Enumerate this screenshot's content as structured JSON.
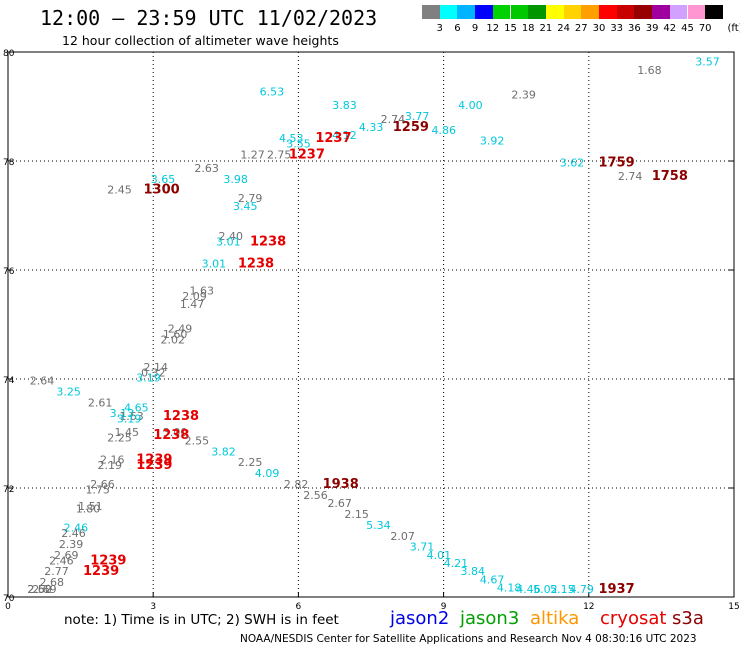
{
  "header": {
    "title": "12:00 – 23:59 UTC 11/02/2023",
    "subtitle": "12 hour collection of altimeter wave heights"
  },
  "colorbar": {
    "unit": "(ft)",
    "labels": [
      "3",
      "6",
      "9",
      "12",
      "15",
      "18",
      "21",
      "24",
      "27",
      "30",
      "33",
      "36",
      "39",
      "42",
      "45",
      "70"
    ],
    "colors": [
      "#808080",
      "#00ffff",
      "#00b4ff",
      "#0000ff",
      "#00d200",
      "#00c800",
      "#009600",
      "#ffff00",
      "#ffd200",
      "#ffa000",
      "#ff0000",
      "#c80000",
      "#960000",
      "#a000a0",
      "#d2a0ff",
      "#ff96d2",
      "#000000"
    ]
  },
  "chart_data": {
    "type": "scatter",
    "title": "12:00 – 23:59 UTC 11/02/2023",
    "subtitle": "12 hour collection of altimeter wave heights",
    "xlim": [
      0,
      15
    ],
    "ylim": [
      70,
      80
    ],
    "x_ticks": [
      "0",
      "3",
      "6",
      "9",
      "12",
      "15"
    ],
    "y_ticks": [
      "70",
      "72",
      "74",
      "76",
      "78",
      "80"
    ],
    "grid": true,
    "colors": {
      "gray": "#6e6e6e",
      "cyan": "#00c8dc",
      "red": "#e60000",
      "darkred": "#8c0000"
    },
    "labels": [
      {
        "t": "6.53",
        "x": 5.2,
        "y": 79.2,
        "c": "cyan"
      },
      {
        "t": "1.68",
        "x": 13.0,
        "y": 79.6,
        "c": "gray"
      },
      {
        "t": "3.57",
        "x": 14.2,
        "y": 79.75,
        "c": "cyan"
      },
      {
        "t": "2.39",
        "x": 10.4,
        "y": 79.15,
        "c": "gray"
      },
      {
        "t": "4.00",
        "x": 9.3,
        "y": 78.95,
        "c": "cyan"
      },
      {
        "t": "3.83",
        "x": 6.7,
        "y": 78.95,
        "c": "cyan"
      },
      {
        "t": "2.74",
        "x": 7.7,
        "y": 78.7,
        "c": "gray"
      },
      {
        "t": "3.77",
        "x": 8.2,
        "y": 78.75,
        "c": "cyan"
      },
      {
        "t": "4.33",
        "x": 7.25,
        "y": 78.55,
        "c": "cyan"
      },
      {
        "t": "1259",
        "x": 7.95,
        "y": 78.55,
        "c": "darkred"
      },
      {
        "t": "4.86",
        "x": 8.75,
        "y": 78.5,
        "c": "cyan"
      },
      {
        "t": "4.12",
        "x": 6.7,
        "y": 78.4,
        "c": "cyan"
      },
      {
        "t": "1237",
        "x": 6.35,
        "y": 78.35,
        "c": "red"
      },
      {
        "t": "4.53",
        "x": 5.6,
        "y": 78.35,
        "c": "cyan"
      },
      {
        "t": "3.55",
        "x": 5.75,
        "y": 78.25,
        "c": "cyan"
      },
      {
        "t": "3.92",
        "x": 9.75,
        "y": 78.3,
        "c": "cyan"
      },
      {
        "t": "1.27",
        "x": 4.8,
        "y": 78.05,
        "c": "gray"
      },
      {
        "t": "2.75",
        "x": 5.35,
        "y": 78.05,
        "c": "gray"
      },
      {
        "t": "1237",
        "x": 5.8,
        "y": 78.05,
        "c": "red"
      },
      {
        "t": "3.62",
        "x": 11.4,
        "y": 77.9,
        "c": "cyan"
      },
      {
        "t": "1759",
        "x": 12.2,
        "y": 77.9,
        "c": "darkred"
      },
      {
        "t": "2.74",
        "x": 12.6,
        "y": 77.65,
        "c": "gray"
      },
      {
        "t": "1758",
        "x": 13.3,
        "y": 77.65,
        "c": "darkred"
      },
      {
        "t": "2.63",
        "x": 3.85,
        "y": 77.8,
        "c": "gray"
      },
      {
        "t": "3.65",
        "x": 2.95,
        "y": 77.6,
        "c": "cyan"
      },
      {
        "t": "3.98",
        "x": 4.45,
        "y": 77.6,
        "c": "cyan"
      },
      {
        "t": "2.45",
        "x": 2.05,
        "y": 77.4,
        "c": "gray"
      },
      {
        "t": "1300",
        "x": 2.8,
        "y": 77.4,
        "c": "darkred"
      },
      {
        "t": "2.79",
        "x": 4.75,
        "y": 77.25,
        "c": "gray"
      },
      {
        "t": "3.45",
        "x": 4.65,
        "y": 77.1,
        "c": "cyan"
      },
      {
        "t": "2.40",
        "x": 4.35,
        "y": 76.55,
        "c": "gray"
      },
      {
        "t": "3.01",
        "x": 4.3,
        "y": 76.45,
        "c": "cyan"
      },
      {
        "t": "1238",
        "x": 5.0,
        "y": 76.45,
        "c": "red"
      },
      {
        "t": "3.01",
        "x": 4.0,
        "y": 76.05,
        "c": "cyan"
      },
      {
        "t": "1238",
        "x": 4.75,
        "y": 76.05,
        "c": "red"
      },
      {
        "t": "1.63",
        "x": 3.75,
        "y": 75.55,
        "c": "gray"
      },
      {
        "t": "2.09",
        "x": 3.6,
        "y": 75.45,
        "c": "gray"
      },
      {
        "t": "1.47",
        "x": 3.55,
        "y": 75.3,
        "c": "gray"
      },
      {
        "t": "2.49",
        "x": 3.3,
        "y": 74.85,
        "c": "gray"
      },
      {
        "t": "1.60",
        "x": 3.2,
        "y": 74.75,
        "c": "gray"
      },
      {
        "t": "2.02",
        "x": 3.15,
        "y": 74.65,
        "c": "gray"
      },
      {
        "t": "2.14",
        "x": 2.8,
        "y": 74.15,
        "c": "gray"
      },
      {
        "t": "0.32",
        "x": 2.75,
        "y": 74.05,
        "c": "gray"
      },
      {
        "t": "3.19",
        "x": 2.65,
        "y": 73.95,
        "c": "cyan"
      },
      {
        "t": "2.64",
        "x": 0.45,
        "y": 73.9,
        "c": "gray"
      },
      {
        "t": "3.25",
        "x": 1.0,
        "y": 73.7,
        "c": "cyan"
      },
      {
        "t": "2.61",
        "x": 1.65,
        "y": 73.5,
        "c": "gray"
      },
      {
        "t": "4.65",
        "x": 2.4,
        "y": 73.4,
        "c": "cyan"
      },
      {
        "t": "3.13",
        "x": 2.1,
        "y": 73.3,
        "c": "cyan"
      },
      {
        "t": "1.63",
        "x": 2.3,
        "y": 73.25,
        "c": "gray"
      },
      {
        "t": "3.19",
        "x": 2.25,
        "y": 73.2,
        "c": "cyan"
      },
      {
        "t": "1238",
        "x": 3.2,
        "y": 73.25,
        "c": "red"
      },
      {
        "t": "3.00",
        "x": 3.2,
        "y": 72.95,
        "c": "gray"
      },
      {
        "t": "1.45",
        "x": 2.2,
        "y": 72.95,
        "c": "gray"
      },
      {
        "t": "2.25",
        "x": 2.05,
        "y": 72.85,
        "c": "gray"
      },
      {
        "t": "1238",
        "x": 3.0,
        "y": 72.9,
        "c": "red"
      },
      {
        "t": "2.55",
        "x": 3.65,
        "y": 72.8,
        "c": "gray"
      },
      {
        "t": "3.82",
        "x": 4.2,
        "y": 72.6,
        "c": "cyan"
      },
      {
        "t": "2.25",
        "x": 4.75,
        "y": 72.4,
        "c": "gray"
      },
      {
        "t": "2.16",
        "x": 1.9,
        "y": 72.45,
        "c": "gray"
      },
      {
        "t": "2.19",
        "x": 1.85,
        "y": 72.35,
        "c": "gray"
      },
      {
        "t": "1239",
        "x": 2.65,
        "y": 72.45,
        "c": "red"
      },
      {
        "t": "1239",
        "x": 2.65,
        "y": 72.35,
        "c": "red"
      },
      {
        "t": "4.09",
        "x": 5.1,
        "y": 72.2,
        "c": "cyan"
      },
      {
        "t": "2.82",
        "x": 5.7,
        "y": 72.0,
        "c": "gray"
      },
      {
        "t": "1938",
        "x": 6.5,
        "y": 72.0,
        "c": "darkred"
      },
      {
        "t": "2.66",
        "x": 1.7,
        "y": 72.0,
        "c": "gray"
      },
      {
        "t": "1.75",
        "x": 1.6,
        "y": 71.9,
        "c": "gray"
      },
      {
        "t": "2.56",
        "x": 6.1,
        "y": 71.8,
        "c": "gray"
      },
      {
        "t": "2.67",
        "x": 6.6,
        "y": 71.65,
        "c": "gray"
      },
      {
        "t": "1.51",
        "x": 1.45,
        "y": 71.6,
        "c": "gray"
      },
      {
        "t": "1.80",
        "x": 1.4,
        "y": 71.55,
        "c": "gray"
      },
      {
        "t": "2.15",
        "x": 6.95,
        "y": 71.45,
        "c": "gray"
      },
      {
        "t": "5.34",
        "x": 7.4,
        "y": 71.25,
        "c": "cyan"
      },
      {
        "t": "2.07",
        "x": 7.9,
        "y": 71.05,
        "c": "gray"
      },
      {
        "t": "3.71",
        "x": 8.3,
        "y": 70.85,
        "c": "cyan"
      },
      {
        "t": "4.01",
        "x": 8.65,
        "y": 70.7,
        "c": "cyan"
      },
      {
        "t": "4.21",
        "x": 9.0,
        "y": 70.55,
        "c": "cyan"
      },
      {
        "t": "3.84",
        "x": 9.35,
        "y": 70.4,
        "c": "cyan"
      },
      {
        "t": "4.67",
        "x": 9.75,
        "y": 70.25,
        "c": "cyan"
      },
      {
        "t": "4.18",
        "x": 10.1,
        "y": 70.1,
        "c": "cyan"
      },
      {
        "t": "4.46",
        "x": 10.5,
        "y": 69.9,
        "c": "cyan"
      },
      {
        "t": "5.02",
        "x": 10.85,
        "y": 69.75,
        "c": "cyan"
      },
      {
        "t": "5.15",
        "x": 11.2,
        "y": 69.55,
        "c": "cyan"
      },
      {
        "t": "4.79",
        "x": 11.6,
        "y": 69.35,
        "c": "cyan"
      },
      {
        "t": "1937",
        "x": 12.2,
        "y": 69.35,
        "c": "darkred"
      },
      {
        "t": "2.46",
        "x": 1.15,
        "y": 71.2,
        "c": "cyan"
      },
      {
        "t": "2.46",
        "x": 1.1,
        "y": 71.1,
        "c": "gray"
      },
      {
        "t": "2.39",
        "x": 1.05,
        "y": 70.9,
        "c": "gray"
      },
      {
        "t": "2.69",
        "x": 0.95,
        "y": 70.7,
        "c": "gray"
      },
      {
        "t": "2.46",
        "x": 0.85,
        "y": 70.6,
        "c": "gray"
      },
      {
        "t": "1239",
        "x": 1.7,
        "y": 70.6,
        "c": "red"
      },
      {
        "t": "2.77",
        "x": 0.75,
        "y": 70.4,
        "c": "gray"
      },
      {
        "t": "1239",
        "x": 1.55,
        "y": 70.4,
        "c": "red"
      },
      {
        "t": "2.68",
        "x": 0.65,
        "y": 70.2,
        "c": "gray"
      },
      {
        "t": "2.69",
        "x": 0.5,
        "y": 69.95,
        "c": "gray"
      },
      {
        "t": "2.50",
        "x": 0.4,
        "y": 69.65,
        "c": "gray"
      },
      {
        "t": "2.62",
        "x": 0.4,
        "y": 69.6,
        "c": "gray"
      }
    ]
  },
  "note": "note:  1) Time is in UTC;  2) SWH is in feet",
  "satellites": [
    {
      "name": "jason2",
      "color": "#0000e6"
    },
    {
      "name": "jason3",
      "color": "#00a000"
    },
    {
      "name": "altika",
      "color": "#ff9600"
    },
    {
      "name": "cryosat",
      "color": "#e60000"
    },
    {
      "name": "s3a",
      "color": "#8c0000"
    }
  ],
  "footer": "NOAA/NESDIS Center for Satellite Applications and Research    Nov  4 08:30:16 UTC 2023"
}
